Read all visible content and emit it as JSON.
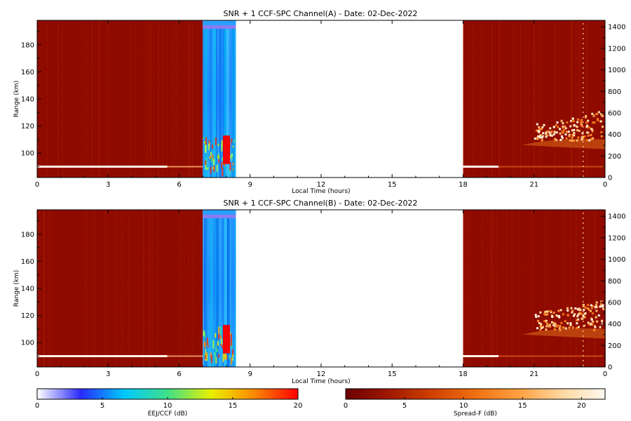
{
  "chart_data": [
    {
      "type": "heatmap",
      "title": "SNR + 1 CCF-SPC Channel(A) - Date: 02-Dec-2022",
      "xlabel": "Local Time (hours)",
      "ylabel": "Range (km)",
      "xlim": [
        0,
        24
      ],
      "ylim": [
        82,
        198
      ],
      "x_ticks": [
        "0",
        "3",
        "6",
        "9",
        "12",
        "15",
        "18",
        "21",
        "0"
      ],
      "x_tick_values": [
        0,
        3,
        6,
        9,
        12,
        15,
        18,
        21,
        24
      ],
      "y_ticks": [
        "100",
        "120",
        "140",
        "160",
        "180"
      ],
      "y_tick_values": [
        100,
        120,
        140,
        160,
        180
      ],
      "y2lim": [
        0,
        1460
      ],
      "y2_ticks": [
        "0",
        "200",
        "400",
        "600",
        "800",
        "1000",
        "1200",
        "1400"
      ],
      "y2_tick_values": [
        0,
        200,
        400,
        600,
        800,
        1000,
        1200,
        1400
      ],
      "grid": false,
      "segments": [
        {
          "colormap": "spread-f",
          "t_start": 0,
          "t_end": 7.0
        },
        {
          "colormap": "eej-ccf",
          "t_start": 7.0,
          "t_end": 8.4
        },
        {
          "colormap": "none",
          "t_start": 8.4,
          "t_end": 18.0
        },
        {
          "colormap": "spread-f",
          "t_start": 18.0,
          "t_end": 24
        }
      ],
      "features": {
        "bottom_layer_range": 90,
        "red_block": {
          "t_start": 7.85,
          "t_end": 8.15,
          "r_low": 92,
          "r_high": 113
        },
        "spread_f_range": [
          105,
          127
        ],
        "spread_f_time": [
          20.5,
          24
        ]
      }
    },
    {
      "type": "heatmap",
      "title": "SNR + 1 CCF-SPC Channel(B) - Date: 02-Dec-2022",
      "xlabel": "Local Time (hours)",
      "ylabel": "Range (km)",
      "xlim": [
        0,
        24
      ],
      "ylim": [
        82,
        198
      ],
      "x_ticks": [
        "0",
        "3",
        "6",
        "9",
        "12",
        "15",
        "18",
        "21",
        "0"
      ],
      "x_tick_values": [
        0,
        3,
        6,
        9,
        12,
        15,
        18,
        21,
        24
      ],
      "y_ticks": [
        "100",
        "120",
        "140",
        "160",
        "180"
      ],
      "y_tick_values": [
        100,
        120,
        140,
        160,
        180
      ],
      "y2lim": [
        0,
        1460
      ],
      "y2_ticks": [
        "0",
        "200",
        "400",
        "600",
        "800",
        "1000",
        "1200",
        "1400"
      ],
      "y2_tick_values": [
        0,
        200,
        400,
        600,
        800,
        1000,
        1200,
        1400
      ],
      "grid": false,
      "segments": [
        {
          "colormap": "spread-f",
          "t_start": 0,
          "t_end": 7.0
        },
        {
          "colormap": "eej-ccf",
          "t_start": 7.0,
          "t_end": 8.4
        },
        {
          "colormap": "none",
          "t_start": 8.4,
          "t_end": 18.0
        },
        {
          "colormap": "spread-f",
          "t_start": 18.0,
          "t_end": 24
        }
      ],
      "features": {
        "bottom_layer_range": 90,
        "red_block": {
          "t_start": 7.85,
          "t_end": 8.15,
          "r_low": 92,
          "r_high": 113
        },
        "spread_f_range": [
          105,
          127
        ],
        "spread_f_time": [
          20.5,
          24
        ]
      }
    }
  ],
  "colorbars": [
    {
      "label": "EEJ/CCF (dB)",
      "range": [
        0,
        20
      ],
      "ticks": [
        "0",
        "5",
        "10",
        "15",
        "20"
      ],
      "tick_values": [
        0,
        5,
        10,
        15,
        20
      ],
      "colors": [
        "#ffffff",
        "#2a2aff",
        "#00c8ff",
        "#3fe08a",
        "#e8f000",
        "#ff8800",
        "#ff0000"
      ]
    },
    {
      "label": "Spread-F (dB)",
      "range": [
        0,
        22
      ],
      "ticks": [
        "0",
        "5",
        "10",
        "15",
        "20"
      ],
      "tick_values": [
        0,
        5,
        10,
        15,
        20
      ],
      "colors": [
        "#6a0000",
        "#a01800",
        "#d04000",
        "#f07010",
        "#ffa040",
        "#ffd8a0",
        "#fff8f0"
      ]
    }
  ]
}
